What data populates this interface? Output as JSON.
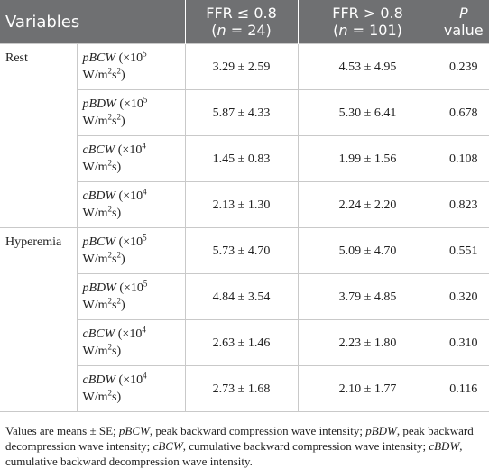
{
  "table": {
    "header": [
      {
        "lines": [
          [
            {
              "t": "Variables"
            }
          ]
        ]
      },
      {
        "lines": [
          [
            {
              "t": "FFR ≤ 0.8"
            }
          ],
          [
            {
              "t": "("
            },
            {
              "i": "n"
            },
            {
              "t": " = 24)"
            }
          ]
        ]
      },
      {
        "lines": [
          [
            {
              "t": "FFR > 0.8"
            }
          ],
          [
            {
              "t": "("
            },
            {
              "i": "n"
            },
            {
              "t": " = 101)"
            }
          ]
        ]
      },
      {
        "lines": [
          [
            {
              "i": "P"
            }
          ],
          [
            {
              "t": "value"
            }
          ]
        ]
      }
    ],
    "groups": [
      {
        "name": "Rest",
        "rows": [
          {
            "variable": [
              {
                "i": "pBCW"
              },
              {
                "t": " (×10"
              },
              {
                "sup": "5"
              },
              {
                "t": " W/m"
              },
              {
                "sup": "2"
              },
              {
                "t": "s"
              },
              {
                "sup": "2"
              },
              {
                "t": ")"
              }
            ],
            "ffr_low": "3.29 ± 2.59",
            "ffr_high": "4.53 ± 4.95",
            "p": "0.239"
          },
          {
            "variable": [
              {
                "i": "pBDW"
              },
              {
                "t": " (×10"
              },
              {
                "sup": "5"
              },
              {
                "t": " W/m"
              },
              {
                "sup": "2"
              },
              {
                "t": "s"
              },
              {
                "sup": "2"
              },
              {
                "t": ")"
              }
            ],
            "ffr_low": "5.87 ± 4.33",
            "ffr_high": "5.30 ± 6.41",
            "p": "0.678"
          },
          {
            "variable": [
              {
                "i": "cBCW"
              },
              {
                "t": " (×10"
              },
              {
                "sup": "4"
              },
              {
                "t": " W/m"
              },
              {
                "sup": "2"
              },
              {
                "t": "s)"
              }
            ],
            "ffr_low": "1.45 ± 0.83",
            "ffr_high": "1.99 ± 1.56",
            "p": "0.108"
          },
          {
            "variable": [
              {
                "i": "cBDW"
              },
              {
                "t": " (×10"
              },
              {
                "sup": "4"
              },
              {
                "t": " W/m"
              },
              {
                "sup": "2"
              },
              {
                "t": "s)"
              }
            ],
            "ffr_low": "2.13 ± 1.30",
            "ffr_high": "2.24 ± 2.20",
            "p": "0.823"
          }
        ]
      },
      {
        "name": "Hyperemia",
        "rows": [
          {
            "variable": [
              {
                "i": "pBCW"
              },
              {
                "t": " (×10"
              },
              {
                "sup": "5"
              },
              {
                "t": " W/m"
              },
              {
                "sup": "2"
              },
              {
                "t": "s"
              },
              {
                "sup": "2"
              },
              {
                "t": ")"
              }
            ],
            "ffr_low": "5.73 ± 4.70",
            "ffr_high": "5.09 ± 4.70",
            "p": "0.551"
          },
          {
            "variable": [
              {
                "i": "pBDW"
              },
              {
                "t": " (×10"
              },
              {
                "sup": "5"
              },
              {
                "t": " W/m"
              },
              {
                "sup": "2"
              },
              {
                "t": "s"
              },
              {
                "sup": "2"
              },
              {
                "t": ")"
              }
            ],
            "ffr_low": "4.84 ± 3.54",
            "ffr_high": "3.79 ± 4.85",
            "p": "0.320"
          },
          {
            "variable": [
              {
                "i": "cBCW"
              },
              {
                "t": " (×10"
              },
              {
                "sup": "4"
              },
              {
                "t": " W/m"
              },
              {
                "sup": "2"
              },
              {
                "t": "s)"
              }
            ],
            "ffr_low": "2.63 ± 1.46",
            "ffr_high": "2.23 ± 1.80",
            "p": "0.310"
          },
          {
            "variable": [
              {
                "i": "cBDW"
              },
              {
                "t": " (×10"
              },
              {
                "sup": "4"
              },
              {
                "t": " W/m"
              },
              {
                "sup": "2"
              },
              {
                "t": "s)"
              }
            ],
            "ffr_low": "2.73 ± 1.68",
            "ffr_high": "2.10 ± 1.77",
            "p": "0.116"
          }
        ]
      }
    ]
  },
  "footnote": [
    {
      "t": "Values are means ± SE; "
    },
    {
      "i": "pBCW"
    },
    {
      "t": ", peak backward compression wave intensity; "
    },
    {
      "i": "pBDW"
    },
    {
      "t": ", peak backward decompression wave intensity; "
    },
    {
      "i": "cBCW"
    },
    {
      "t": ", cumulative backward compression wave intensity; "
    },
    {
      "i": "cBDW"
    },
    {
      "t": ", cumulative backward decompression wave intensity."
    }
  ]
}
